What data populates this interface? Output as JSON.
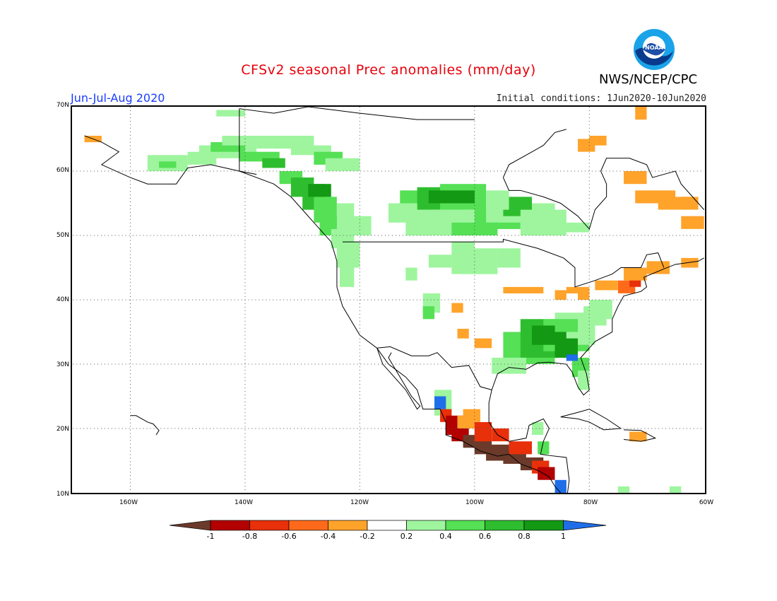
{
  "header": {
    "title": "CFSv2 seasonal Prec anomalies (mm/day)",
    "agency": "NWS/NCEP/CPC",
    "logo_text": "NOAA",
    "season": "Jun-Jul-Aug 2020",
    "initial_conditions": "Initial conditions: 1Jun2020-10Jun2020"
  },
  "map": {
    "lat_labels": [
      "70N",
      "60N",
      "50N",
      "40N",
      "30N",
      "20N",
      "10N"
    ],
    "lon_labels": [
      "160W",
      "140W",
      "120W",
      "100W",
      "80W",
      "60W"
    ],
    "lon_range": [
      -170,
      -60
    ],
    "lat_range": [
      10,
      70
    ],
    "gridlines": "dotted"
  },
  "colorbar": {
    "labels": [
      "-1",
      "-0.8",
      "-0.6",
      "-0.4",
      "-0.2",
      "0.2",
      "0.4",
      "0.6",
      "0.8",
      "1"
    ],
    "colors": [
      "#6b3a2a",
      "#b30000",
      "#e8300a",
      "#ff6a1a",
      "#ffa32a",
      "#ffffff",
      "#9ef59e",
      "#55e055",
      "#2ebd2e",
      "#139913",
      "#1f6ee8"
    ]
  },
  "colors": {
    "wet_light": "#9ef59e",
    "wet_med": "#55e055",
    "wet_strong": "#2ebd2e",
    "wet_very": "#139913",
    "wet_extreme": "#1f6ee8",
    "dry_light": "#ffa32a",
    "dry_med": "#ff6a1a",
    "dry_strong": "#e8300a",
    "dry_very": "#b30000",
    "dry_extreme": "#6b3a2a"
  }
}
